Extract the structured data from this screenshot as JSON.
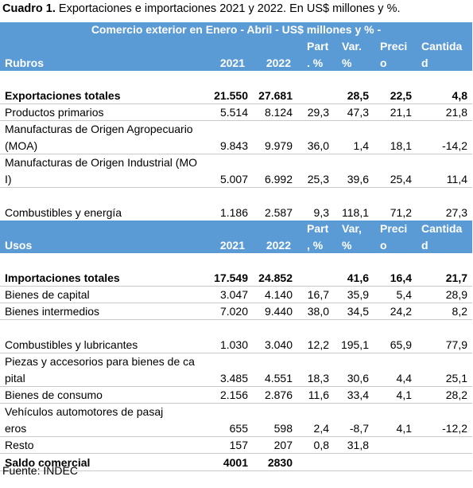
{
  "caption": {
    "bold": "Cuadro 1.",
    "text": " Exportaciones e importaciones 2021 y 2022. En US$ millones y %."
  },
  "title": "Comercio exterior en Enero - Abril - US$ millones y % -",
  "export_header": {
    "label": "Rubros",
    "y2021": "2021",
    "y2022": "2022",
    "part": "Part . %",
    "var": "Var. %",
    "precio": "Precio",
    "cantidad": "Cantidad"
  },
  "export_rows": [
    {
      "label": "Exportaciones totales",
      "y2021": "21.550",
      "y2022": "27.681",
      "part": "",
      "var": "28,5",
      "precio": "22,5",
      "cantidad": "4,8"
    },
    {
      "label": "Productos primarios",
      "y2021": "5.514",
      "y2022": "8.124",
      "part": "29,3",
      "var": "47,3",
      "precio": "21,1",
      "cantidad": "21,8"
    },
    {
      "label": "Manufacturas de Origen Agropecuario (MOA)",
      "y2021": "9.843",
      "y2022": "9.979",
      "part": "36,0",
      "var": "1,4",
      "precio": "18,1",
      "cantidad": "-14,2"
    },
    {
      "label": "Manufacturas de Origen Industrial (MOI)",
      "y2021": "5.007",
      "y2022": "6.992",
      "part": "25,3",
      "var": "39,6",
      "precio": "25,4",
      "cantidad": "11,4"
    },
    {
      "label": "Combustibles y energía",
      "y2021": "1.186",
      "y2022": "2.587",
      "part": "9,3",
      "var": "118,1",
      "precio": "71,2",
      "cantidad": "27,3"
    }
  ],
  "import_header": {
    "label": "Usos",
    "y2021": "2021",
    "y2022": "2022",
    "part": "Part , %",
    "var": "Var, %",
    "precio": "Precio",
    "cantidad": "Cantidad"
  },
  "import_rows": [
    {
      "label": "Importaciones totales",
      "y2021": "17.549",
      "y2022": "24.852",
      "part": "",
      "var": "41,6",
      "precio": "16,4",
      "cantidad": "21,7"
    },
    {
      "label": "Bienes de capital",
      "y2021": "3.047",
      "y2022": "4.140",
      "part": "16,7",
      "var": "35,9",
      "precio": "5,4",
      "cantidad": "28,9"
    },
    {
      "label": "Bienes intermedios",
      "y2021": "7.020",
      "y2022": "9.440",
      "part": "38,0",
      "var": "34,5",
      "precio": "24,2",
      "cantidad": "8,2"
    },
    {
      "label": "Combustibles y lubricantes",
      "y2021": "1.030",
      "y2022": "3.040",
      "part": "12,2",
      "var": "195,1",
      "precio": "65,9",
      "cantidad": "77,9"
    },
    {
      "label": "Piezas y accesorios para bienes de capital",
      "y2021": "3.485",
      "y2022": "4.551",
      "part": "18,3",
      "var": "30,6",
      "precio": "4,4",
      "cantidad": "25,1"
    },
    {
      "label": "Bienes de consumo",
      "y2021": "2.156",
      "y2022": "2.876",
      "part": "11,6",
      "var": "33,4",
      "precio": "4,1",
      "cantidad": "28,2"
    },
    {
      "label": "Vehículos automotores de pasajeros",
      "y2021": "655",
      "y2022": "598",
      "part": "2,4",
      "var": "-8,7",
      "precio": "4,1",
      "cantidad": "-12,2"
    },
    {
      "label": "Resto",
      "y2021": "157",
      "y2022": "207",
      "part": "0,8",
      "var": "31,8",
      "precio": "",
      "cantidad": ""
    }
  ],
  "saldo": {
    "label": "Saldo comercial",
    "y2021": "4001",
    "y2022": "2830"
  },
  "source": "Fuente: INDEC",
  "colors": {
    "header_band": "#5b9bd5",
    "header_text": "#ffffff"
  }
}
